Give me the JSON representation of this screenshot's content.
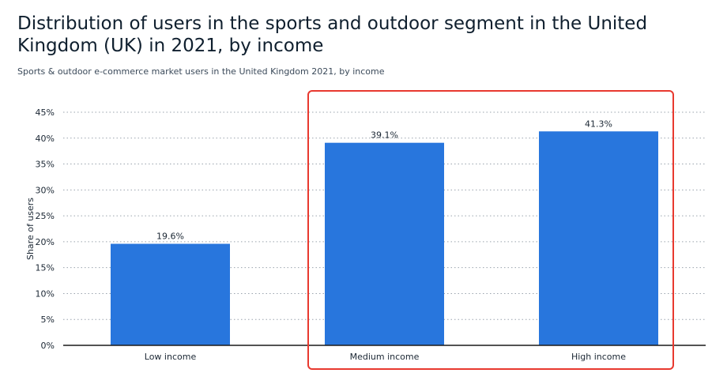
{
  "header": {
    "title": "Distribution of users in the sports and outdoor segment in the United Kingdom (UK) in 2021, by income",
    "subtitle": "Sports & outdoor e-commerce market users in the United Kingdom 2021, by income"
  },
  "chart_data": {
    "type": "bar",
    "title": "Distribution of users in the sports and outdoor segment in the United Kingdom (UK) in 2021, by income",
    "subtitle": "Sports & outdoor e-commerce market users in the United Kingdom 2021, by income",
    "categories": [
      "Low income",
      "Medium income",
      "High income"
    ],
    "values": [
      19.6,
      39.1,
      41.3
    ],
    "data_labels": [
      "19.6%",
      "39.1%",
      "41.3%"
    ],
    "xlabel": "",
    "ylabel": "Share of users",
    "ylim": [
      0,
      45
    ],
    "yticks": [
      0,
      5,
      10,
      15,
      20,
      25,
      30,
      35,
      40,
      45
    ],
    "ytick_labels": [
      "0%",
      "5%",
      "10%",
      "15%",
      "20%",
      "25%",
      "30%",
      "35%",
      "40%",
      "45%"
    ],
    "grid": true,
    "legend": "none",
    "highlight": [
      "Medium income",
      "High income"
    ]
  },
  "colors": {
    "bar": "#2876dd",
    "highlight_box": "#e8392f",
    "grid": "#9aa3ad",
    "axis": "#1a1a1a",
    "text": "#1a2633"
  }
}
